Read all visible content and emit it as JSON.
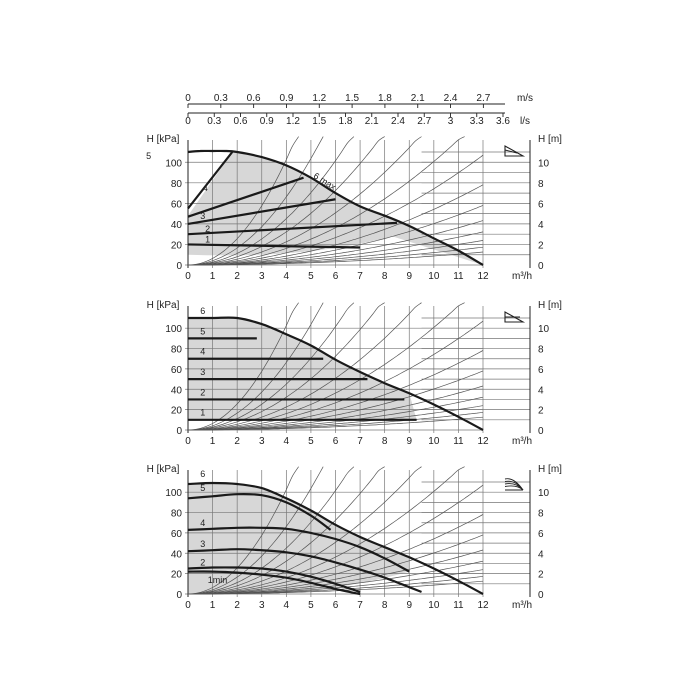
{
  "top_axes": {
    "ms_ticks": [
      "0",
      "0.3",
      "0.6",
      "0.9",
      "1.2",
      "1.5",
      "1.8",
      "2.1",
      "2.4",
      "2.7"
    ],
    "ms_values": [
      0,
      0.3,
      0.6,
      0.9,
      1.2,
      1.5,
      1.8,
      2.1,
      2.4,
      2.7
    ],
    "ms_unit": "m/s",
    "ls_ticks": [
      "0",
      "0.3",
      "0.6",
      "0.9",
      "1.2",
      "1.5",
      "1.8",
      "2.1",
      "2.4",
      "2.7",
      "3",
      "3.3",
      "3.6"
    ],
    "ls_values": [
      0,
      0.3,
      0.6,
      0.9,
      1.2,
      1.5,
      1.8,
      2.1,
      2.4,
      2.7,
      3,
      3.3,
      3.6
    ],
    "ls_unit": "l/s"
  },
  "chart_data": [
    {
      "type": "line",
      "mode_icon": "proportional-pressure-icon",
      "xlabel": "m³/h",
      "ylabel": "H [kPa]",
      "ylabel_right": "H [m]",
      "xlim": [
        0,
        12
      ],
      "ylim": [
        0,
        110
      ],
      "y2lim": [
        0,
        11
      ],
      "x_ticks": [
        "0",
        "1",
        "2",
        "3",
        "4",
        "5",
        "6",
        "7",
        "8",
        "9",
        "10",
        "11",
        "12"
      ],
      "y_ticks": [
        "0",
        "20",
        "40",
        "60",
        "80",
        "100"
      ],
      "y2_ticks": [
        "0",
        "2",
        "4",
        "6",
        "8",
        "10"
      ],
      "grid": true,
      "curve_labels": [
        "1",
        "2",
        "3",
        "4",
        "5",
        "6 max"
      ],
      "series": [
        {
          "label": "6 max",
          "x": [
            0,
            0.5,
            1,
            1.5,
            2,
            3,
            4,
            5,
            6,
            7,
            8,
            9,
            10,
            11,
            12
          ],
          "y": [
            110,
            111,
            111,
            111,
            110,
            105,
            97,
            85,
            70,
            57,
            48,
            38,
            26,
            14,
            0
          ]
        },
        {
          "label": "5",
          "x": [
            0,
            1.8
          ],
          "y": [
            55,
            110
          ]
        },
        {
          "label": "4",
          "x": [
            0,
            4.7
          ],
          "y": [
            47,
            85
          ]
        },
        {
          "label": "3",
          "x": [
            0,
            6
          ],
          "y": [
            40,
            64
          ]
        },
        {
          "label": "2",
          "x": [
            0,
            8.5
          ],
          "y": [
            30,
            41
          ]
        },
        {
          "label": "1",
          "x": [
            0,
            7
          ],
          "y": [
            20,
            17
          ]
        }
      ]
    },
    {
      "type": "line",
      "mode_icon": "constant-pressure-icon",
      "xlabel": "m³/h",
      "ylabel": "H [kPa]",
      "ylabel_right": "H [m]",
      "xlim": [
        0,
        12
      ],
      "ylim": [
        0,
        110
      ],
      "y2lim": [
        0,
        11
      ],
      "x_ticks": [
        "0",
        "1",
        "2",
        "3",
        "4",
        "5",
        "6",
        "7",
        "8",
        "9",
        "10",
        "11",
        "12"
      ],
      "y_ticks": [
        "0",
        "20",
        "40",
        "60",
        "80",
        "100"
      ],
      "y2_ticks": [
        "0",
        "2",
        "4",
        "6",
        "8",
        "10"
      ],
      "grid": true,
      "curve_labels": [
        "1",
        "2",
        "3",
        "4",
        "5",
        "6"
      ],
      "series": [
        {
          "label": "6",
          "x": [
            0,
            1,
            2,
            3,
            4,
            5,
            6,
            7,
            8,
            9,
            10,
            11,
            12
          ],
          "y": [
            110,
            110,
            110,
            104,
            94,
            83,
            69,
            57,
            46,
            36,
            25,
            13,
            0
          ]
        },
        {
          "label": "5",
          "x": [
            0,
            2.8
          ],
          "y": [
            90,
            90
          ]
        },
        {
          "label": "4",
          "x": [
            0,
            5.5
          ],
          "y": [
            70,
            70
          ]
        },
        {
          "label": "3",
          "x": [
            0,
            7.3
          ],
          "y": [
            50,
            50
          ]
        },
        {
          "label": "2",
          "x": [
            0,
            8.8
          ],
          "y": [
            30,
            30
          ]
        },
        {
          "label": "1",
          "x": [
            0,
            9.3
          ],
          "y": [
            10,
            10
          ]
        }
      ]
    },
    {
      "type": "line",
      "mode_icon": "fixed-speed-icon",
      "xlabel": "m³/h",
      "ylabel": "H [kPa]",
      "ylabel_right": "H [m]",
      "xlim": [
        0,
        12
      ],
      "ylim": [
        0,
        110
      ],
      "y2lim": [
        0,
        11
      ],
      "x_ticks": [
        "0",
        "1",
        "2",
        "3",
        "4",
        "5",
        "6",
        "7",
        "8",
        "9",
        "10",
        "11",
        "12"
      ],
      "y_ticks": [
        "0",
        "20",
        "40",
        "60",
        "80",
        "100"
      ],
      "y2_ticks": [
        "0",
        "2",
        "4",
        "6",
        "8",
        "10"
      ],
      "grid": true,
      "curve_labels": [
        "1min",
        "2",
        "3",
        "4",
        "5",
        "6"
      ],
      "series": [
        {
          "label": "6",
          "x": [
            0,
            1,
            2,
            3,
            4,
            5,
            6,
            7,
            8,
            9,
            10,
            11,
            12
          ],
          "y": [
            108,
            109,
            108,
            104,
            94,
            82,
            68,
            56,
            46,
            36,
            25,
            13,
            0
          ]
        },
        {
          "label": "5",
          "x": [
            0,
            1,
            2,
            3,
            4,
            5,
            5.8
          ],
          "y": [
            94,
            96,
            98,
            97,
            90,
            77,
            63
          ]
        },
        {
          "label": "4",
          "x": [
            0,
            1,
            2,
            3,
            4,
            5,
            6,
            7,
            8,
            9
          ],
          "y": [
            63,
            64,
            65,
            65,
            64,
            60,
            54,
            46,
            35,
            22
          ]
        },
        {
          "label": "3",
          "x": [
            0,
            1,
            2,
            3,
            4,
            5,
            6,
            7,
            8,
            9.5
          ],
          "y": [
            42,
            43,
            44,
            43,
            41,
            37,
            31,
            24,
            16,
            2
          ]
        },
        {
          "label": "2",
          "x": [
            0,
            1,
            2,
            3,
            4,
            5,
            6,
            7
          ],
          "y": [
            25,
            26,
            26,
            25,
            22,
            17,
            10,
            2
          ]
        },
        {
          "label": "1min",
          "x": [
            0,
            1,
            2,
            3,
            4,
            5,
            6,
            7
          ],
          "y": [
            22,
            22,
            21,
            19,
            16,
            11,
            5,
            0
          ]
        }
      ]
    }
  ]
}
